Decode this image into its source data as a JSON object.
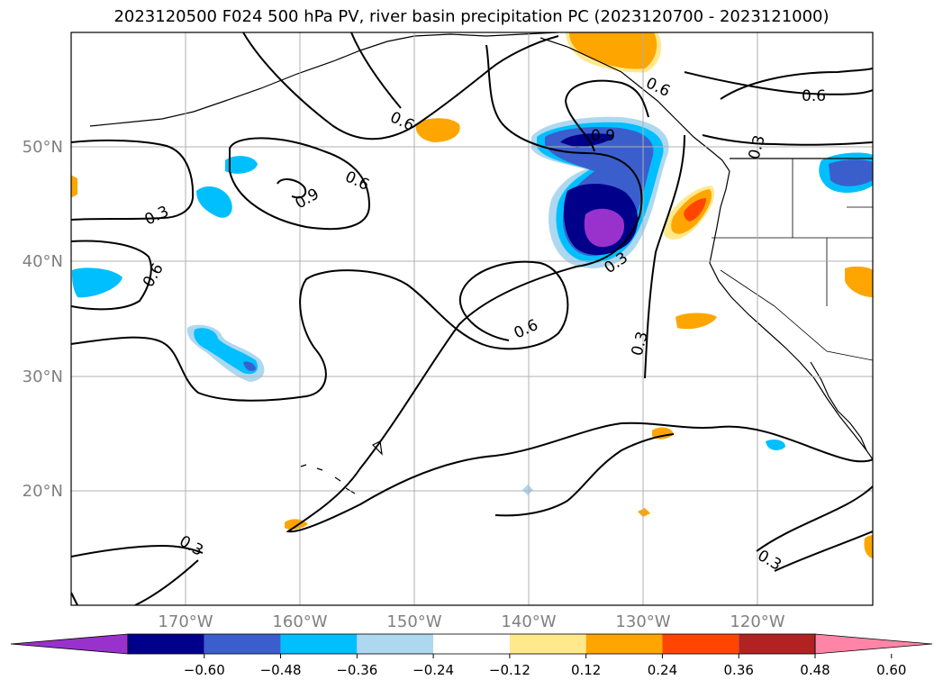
{
  "title": "2023120500 F024 500 hPa PV, river basin precipitation PC (2023120700 - 2023121000)",
  "lat_labels": [
    "50°N",
    "40°N",
    "30°N",
    "20°N"
  ],
  "lon_labels": [
    "170°W",
    "160°W",
    "150°W",
    "140°W",
    "130°W",
    "120°W"
  ],
  "contour_labels": [
    "0.6",
    "0.9",
    "0.6",
    "0.3",
    "0.6",
    "0.9",
    "0.6",
    "0.3",
    "0.6",
    "0.3",
    "0.3",
    "0.6",
    "0.3",
    "0.3"
  ],
  "colorbar": {
    "tick_labels": [
      "−0.60",
      "−0.48",
      "−0.36",
      "−0.24",
      "−0.12",
      "0.12",
      "0.24",
      "0.36",
      "0.48",
      "0.60"
    ],
    "colors": [
      "#9932cc",
      "#00008b",
      "#3a5fcd",
      "#00bfff",
      "#add8f0",
      "#ffffff",
      "#ffe98a",
      "#ffa500",
      "#ff4500",
      "#b22222",
      "#ff85a8"
    ]
  },
  "colors": {
    "contour": "#000000",
    "grid": "#b0b0b0",
    "axis_label": "#808080"
  }
}
